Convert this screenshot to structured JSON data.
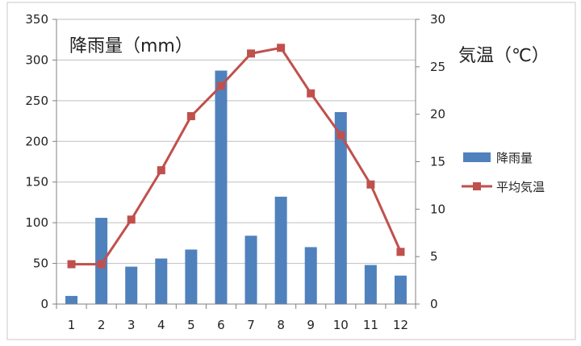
{
  "chart_data": {
    "type": "bar",
    "categories": [
      "1",
      "2",
      "3",
      "4",
      "5",
      "6",
      "7",
      "8",
      "9",
      "10",
      "11",
      "12"
    ],
    "series": [
      {
        "name": "降雨量",
        "type": "bar",
        "axis": "left",
        "color": "#4f81bd",
        "values": [
          10,
          106,
          46,
          56,
          67,
          287,
          84,
          132,
          70,
          236,
          48,
          35
        ]
      },
      {
        "name": "平均気温",
        "type": "line",
        "axis": "right",
        "color": "#c0504d",
        "marker": "square",
        "values": [
          4.2,
          4.2,
          8.9,
          14.1,
          19.8,
          23.0,
          26.4,
          27.0,
          22.2,
          17.8,
          12.6,
          5.5
        ]
      }
    ],
    "y_left": {
      "label": "降雨量（mm）",
      "min": 0,
      "max": 350,
      "step": 50
    },
    "y_right": {
      "label": "気温（℃）",
      "min": 0,
      "max": 30,
      "step": 5
    },
    "grid": true,
    "legend": "right"
  }
}
